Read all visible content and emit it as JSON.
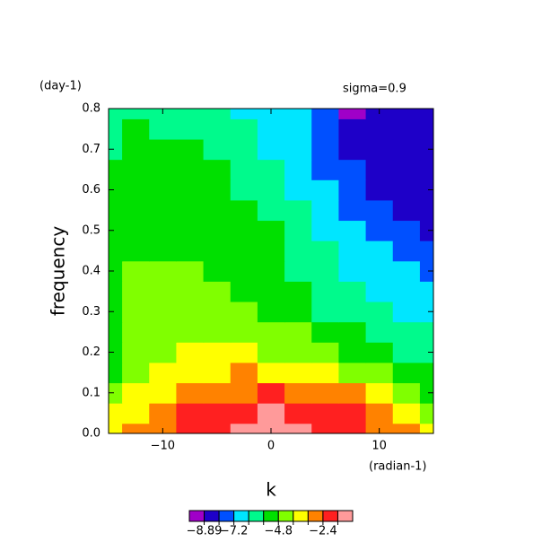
{
  "chart_data": {
    "type": "contour",
    "top_left_label": "(day-1)",
    "subtitle": "sigma=0.9",
    "y_label": "frequency",
    "x_label": "k",
    "x_unit_label": "(radian-1)",
    "xlim": [
      -15,
      15
    ],
    "ylim": [
      0,
      0.8
    ],
    "xticks": [
      {
        "value": -10,
        "label": "−10"
      },
      0,
      10
    ],
    "yticks": [
      {
        "value": 0,
        "label": "0.0"
      },
      0.1,
      0.2,
      0.3,
      0.4,
      0.5,
      0.6,
      0.7,
      0.8
    ],
    "x": [
      -15,
      -12.5,
      -10,
      -7.5,
      -5,
      -2.5,
      0,
      2.5,
      5,
      7.5,
      10,
      12.5,
      15
    ],
    "y": [
      0,
      0.05,
      0.1,
      0.15,
      0.2,
      0.25,
      0.3,
      0.35,
      0.4,
      0.45,
      0.5,
      0.55,
      0.6,
      0.65,
      0.7,
      0.75,
      0.8
    ],
    "z": [
      [
        -3.6,
        -3.1,
        -2.7,
        -2.1,
        -1.9,
        -1.4,
        -1.2,
        -1.3,
        -1.7,
        -2.1,
        -2.5,
        -3.0,
        -3.6
      ],
      [
        -4.0,
        -3.4,
        -3.0,
        -2.3,
        -2.0,
        -1.7,
        -1.6,
        -1.7,
        -2.0,
        -2.3,
        -2.8,
        -3.4,
        -4.4
      ],
      [
        -4.8,
        -3.8,
        -3.4,
        -3.0,
        -2.7,
        -2.5,
        -2.4,
        -2.5,
        -2.7,
        -3.1,
        -3.7,
        -4.5,
        -5.1
      ],
      [
        -5.0,
        -4.4,
        -3.9,
        -3.5,
        -3.3,
        -3.2,
        -3.3,
        -3.5,
        -3.8,
        -4.2,
        -4.7,
        -5.3,
        -5.6
      ],
      [
        -5.0,
        -4.6,
        -4.2,
        -3.9,
        -3.8,
        -3.9,
        -4.1,
        -4.3,
        -4.6,
        -5.0,
        -5.4,
        -5.8,
        -6.1
      ],
      [
        -5.1,
        -4.6,
        -4.3,
        -4.2,
        -4.1,
        -4.3,
        -4.5,
        -4.7,
        -5.0,
        -5.4,
        -5.8,
        -6.2,
        -6.4
      ],
      [
        -5.2,
        -4.7,
        -4.4,
        -4.4,
        -4.5,
        -4.7,
        -5.0,
        -5.3,
        -5.7,
        -6.0,
        -6.3,
        -6.6,
        -6.8
      ],
      [
        -5.3,
        -4.7,
        -4.5,
        -4.5,
        -4.7,
        -4.9,
        -5.2,
        -5.5,
        -5.9,
        -6.3,
        -6.6,
        -6.9,
        -7.1
      ],
      [
        -5.3,
        -4.7,
        -4.6,
        -4.7,
        -4.9,
        -5.1,
        -5.4,
        -5.7,
        -6.1,
        -6.5,
        -6.8,
        -7.1,
        -7.3
      ],
      [
        -5.4,
        -5.0,
        -4.9,
        -5.0,
        -5.1,
        -5.3,
        -5.5,
        -5.9,
        -6.3,
        -6.7,
        -7.0,
        -7.4,
        -7.8
      ],
      [
        -5.4,
        -5.1,
        -5.0,
        -5.1,
        -5.2,
        -5.4,
        -5.58,
        -6.0,
        -6.5,
        -6.9,
        -7.4,
        -7.9,
        -8.2
      ],
      [
        -5.4,
        -5.1,
        -5.1,
        -5.2,
        -5.3,
        -5.5,
        -5.8,
        -6.2,
        -6.7,
        -7.3,
        -7.7,
        -8.1,
        -8.3
      ],
      [
        -5.4,
        -5.2,
        -5.2,
        -5.3,
        -5.4,
        -5.7,
        -6.0,
        -6.5,
        -7.0,
        -7.5,
        -8.05,
        -8.3,
        -8.4
      ],
      [
        -5.5,
        -5.2,
        -5.3,
        -5.4,
        -5.5,
        -5.8,
        -6.2,
        -6.7,
        -7.3,
        -7.8,
        -8.2,
        -8.4,
        -8.5
      ],
      [
        -5.65,
        -5.3,
        -5.4,
        -5.5,
        -5.7,
        -6.0,
        -6.5,
        -7.0,
        -7.5,
        -8.1,
        -8.4,
        -8.5,
        -8.5
      ],
      [
        -5.8,
        -5.5,
        -5.7,
        -5.9,
        -6.1,
        -6.3,
        -6.7,
        -7.1,
        -7.7,
        -8.4,
        -8.5,
        -8.5,
        -8.5
      ],
      [
        -6.0,
        -5.9,
        -6.0,
        -6.1,
        -6.2,
        -6.5,
        -6.9,
        -7.0,
        -7.8,
        -8.95,
        -8.6,
        -8.5,
        -8.5
      ]
    ],
    "levels": [
      -8.89,
      -8.0,
      -7.2,
      -6.4,
      -5.6,
      -4.8,
      -4.0,
      -3.2,
      -2.4,
      -1.6
    ],
    "colors": [
      "#a000c8",
      "#1e00c8",
      "#0050ff",
      "#00e6ff",
      "#00fa8c",
      "#00e000",
      "#80ff00",
      "#ffff00",
      "#ff8200",
      "#ff2020",
      "#ff9a9a"
    ],
    "colorbar_ticks": [
      {
        "value": -8.89,
        "label": "−8.89"
      },
      {
        "value": -7.2,
        "label": "−7.2"
      },
      {
        "value": -4.8,
        "label": "−4.8"
      },
      {
        "value": -2.4,
        "label": "−2.4"
      }
    ]
  }
}
